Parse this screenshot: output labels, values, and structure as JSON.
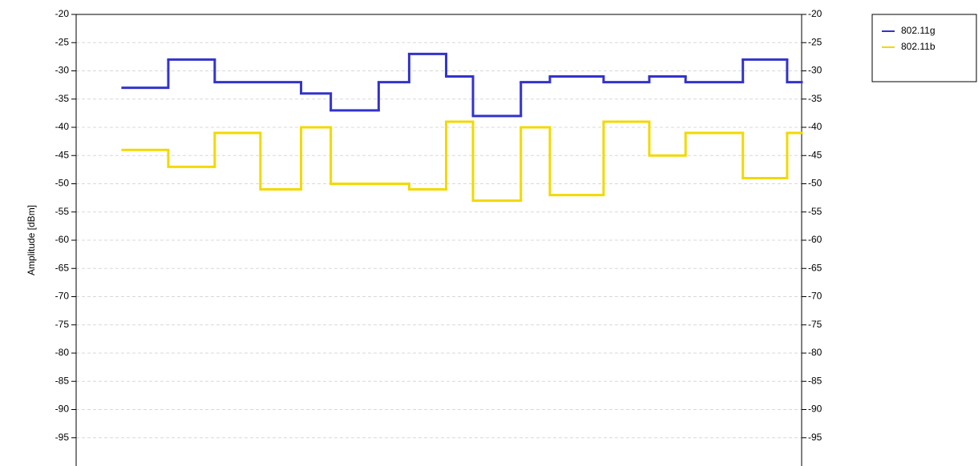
{
  "chart_data": {
    "type": "step",
    "y_label": "Amplitude [dBm]",
    "xlim": [
      0,
      100
    ],
    "ylim": [
      -100,
      -20
    ],
    "yticks": [
      -20,
      -25,
      -30,
      -35,
      -40,
      -45,
      -50,
      -55,
      -60,
      -65,
      -70,
      -75,
      -80,
      -85,
      -90,
      -95
    ],
    "grid": true,
    "legend": "outside-top-right",
    "series": [
      {
        "name": "802.11g",
        "color": "#3333cc",
        "x": [
          6.4,
          12.7,
          19.1,
          31.0,
          35.1,
          41.7,
          45.9,
          51.0,
          54.7,
          61.3,
          65.3,
          72.7,
          79.0,
          84.0,
          91.9,
          98.0
        ],
        "values": [
          -33,
          -28,
          -32,
          -34,
          -37,
          -32,
          -27,
          -31,
          -38,
          -32,
          -31,
          -32,
          -31,
          -32,
          -28,
          -32
        ]
      },
      {
        "name": "802.11b",
        "color": "#f2d900",
        "x": [
          6.4,
          12.7,
          19.1,
          25.4,
          31.0,
          35.1,
          45.9,
          51.0,
          54.7,
          61.3,
          65.3,
          72.7,
          79.0,
          84.0,
          91.9,
          98.0
        ],
        "values": [
          -44,
          -47,
          -41,
          -51,
          -40,
          -50,
          -51,
          -39,
          -53,
          -40,
          -52,
          -39,
          -45,
          -41,
          -49,
          -41
        ]
      }
    ]
  }
}
